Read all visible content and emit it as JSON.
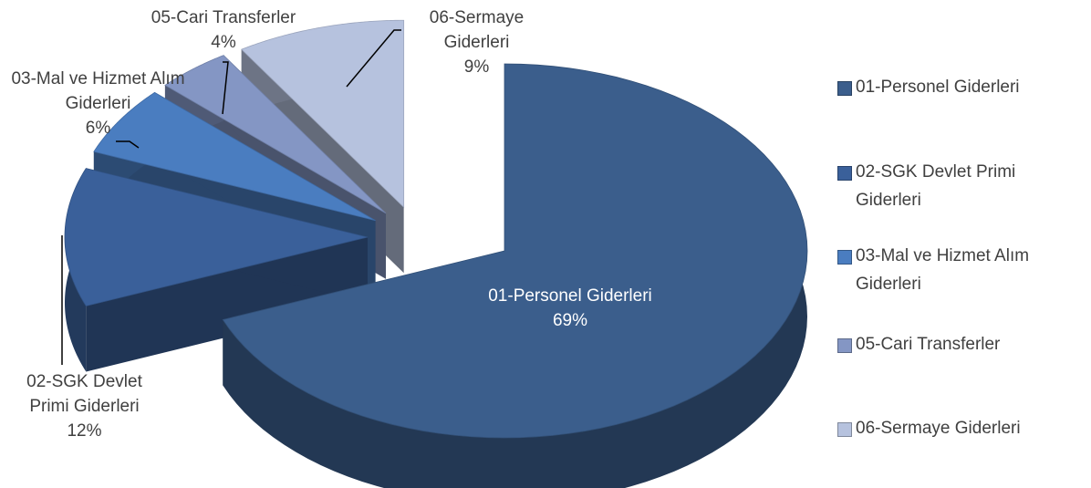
{
  "chart_data": {
    "type": "pie",
    "categories": [
      "01-Personel Giderleri",
      "02-SGK Devlet Primi Giderleri",
      "03-Mal ve Hizmet Alım Giderleri",
      "05-Cari Transferler",
      "06-Sermaye Giderleri"
    ],
    "values": [
      69,
      12,
      6,
      4,
      9
    ],
    "value_labels": [
      "69%",
      "12%",
      "6%",
      "4%",
      "9%"
    ],
    "colors": [
      "#3b5e8c",
      "#3a609a",
      "#4a7dc0",
      "#8496c4",
      "#b6c2de"
    ],
    "legend": "right"
  }
}
